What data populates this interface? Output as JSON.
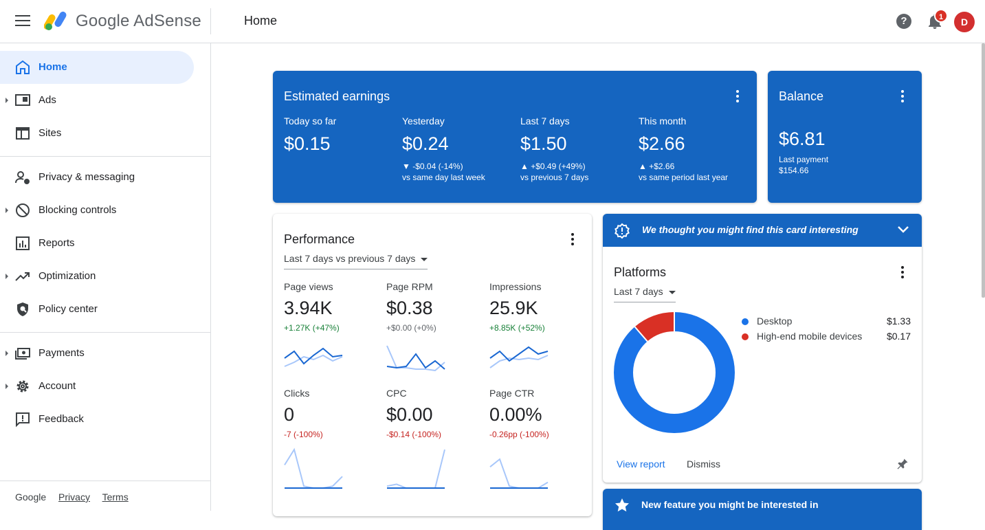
{
  "header": {
    "brand": "Google AdSense",
    "page_title": "Home",
    "notification_count": "1",
    "avatar_initial": "D"
  },
  "sidebar": {
    "items": [
      {
        "label": "Home",
        "icon": "home-icon"
      },
      {
        "label": "Ads",
        "icon": "ads-icon"
      },
      {
        "label": "Sites",
        "icon": "sites-icon"
      },
      {
        "label": "Privacy & messaging",
        "icon": "privacy-icon"
      },
      {
        "label": "Blocking controls",
        "icon": "block-icon"
      },
      {
        "label": "Reports",
        "icon": "reports-icon"
      },
      {
        "label": "Optimization",
        "icon": "trending-icon"
      },
      {
        "label": "Policy center",
        "icon": "shield-icon"
      },
      {
        "label": "Payments",
        "icon": "payments-icon"
      },
      {
        "label": "Account",
        "icon": "gear-icon"
      },
      {
        "label": "Feedback",
        "icon": "feedback-icon"
      }
    ],
    "footer": {
      "google": "Google",
      "privacy": "Privacy",
      "terms": "Terms"
    }
  },
  "earnings": {
    "title": "Estimated earnings",
    "columns": [
      {
        "label": "Today so far",
        "value": "$0.15",
        "change": "",
        "sub": ""
      },
      {
        "label": "Yesterday",
        "value": "$0.24",
        "change": "▼ -$0.04 (-14%)",
        "sub": "vs same day last week"
      },
      {
        "label": "Last 7 days",
        "value": "$1.50",
        "change": "▲ +$0.49 (+49%)",
        "sub": "vs previous 7 days"
      },
      {
        "label": "This month",
        "value": "$2.66",
        "change": "▲ +$2.66",
        "sub": "vs same period last year"
      }
    ]
  },
  "balance": {
    "title": "Balance",
    "value": "$6.81",
    "last_payment_label": "Last payment",
    "last_payment_value": "$154.66"
  },
  "performance": {
    "title": "Performance",
    "range": "Last 7 days vs previous 7 days",
    "metrics": [
      {
        "label": "Page views",
        "value": "3.94K",
        "change": "+1.27K (+47%)",
        "trend": "up",
        "current": [
          0.45,
          0.7,
          0.25,
          0.55,
          0.8,
          0.5,
          0.55
        ],
        "previous": [
          0.15,
          0.3,
          0.5,
          0.4,
          0.55,
          0.35,
          0.5
        ]
      },
      {
        "label": "Page RPM",
        "value": "$0.38",
        "change": "+$0.00 (+0%)",
        "trend": "neutral",
        "current": [
          0.15,
          0.1,
          0.15,
          0.6,
          0.1,
          0.35,
          0.05
        ],
        "previous": [
          0.9,
          0.1,
          0.1,
          0.05,
          0.05,
          0.0,
          0.3
        ]
      },
      {
        "label": "Impressions",
        "value": "25.9K",
        "change": "+8.85K (+52%)",
        "trend": "up",
        "current": [
          0.45,
          0.7,
          0.35,
          0.6,
          0.85,
          0.6,
          0.7
        ],
        "previous": [
          0.1,
          0.35,
          0.45,
          0.4,
          0.45,
          0.4,
          0.55
        ]
      },
      {
        "label": "Clicks",
        "value": "0",
        "change": "-7 (-100%)",
        "trend": "down",
        "current": [
          0,
          0,
          0,
          0,
          0,
          0,
          0
        ],
        "previous": [
          0.6,
          1.0,
          0.05,
          0.0,
          0.0,
          0.05,
          0.3
        ]
      },
      {
        "label": "CPC",
        "value": "$0.00",
        "change": "-$0.14 (-100%)",
        "trend": "down",
        "current": [
          0,
          0,
          0,
          0,
          0,
          0,
          0
        ],
        "previous": [
          0.05,
          0.1,
          0.0,
          0.0,
          0.0,
          0.0,
          1.0
        ]
      },
      {
        "label": "Page CTR",
        "value": "0.00%",
        "change": "-0.26pp (-100%)",
        "trend": "down",
        "current": [
          0,
          0,
          0,
          0,
          0,
          0,
          0
        ],
        "previous": [
          0.55,
          0.75,
          0.05,
          0.0,
          0.0,
          0.0,
          0.15
        ]
      }
    ]
  },
  "suggestion_card": {
    "banner": "We thought you might find this card interesting",
    "title": "Platforms",
    "range": "Last 7 days",
    "view_report": "View report",
    "dismiss": "Dismiss"
  },
  "chart_data": {
    "type": "pie",
    "title": "Platforms",
    "categories": [
      "Desktop",
      "High-end mobile devices"
    ],
    "values": [
      1.33,
      0.17
    ],
    "value_labels": [
      "$1.33",
      "$0.17"
    ],
    "colors": [
      "#1a73e8",
      "#d93025"
    ],
    "legend": "right"
  },
  "feature_card": {
    "banner": "New feature you might be interested in"
  },
  "colors": {
    "accent": "#1565c0",
    "positive": "#188038",
    "negative": "#c5221f"
  }
}
